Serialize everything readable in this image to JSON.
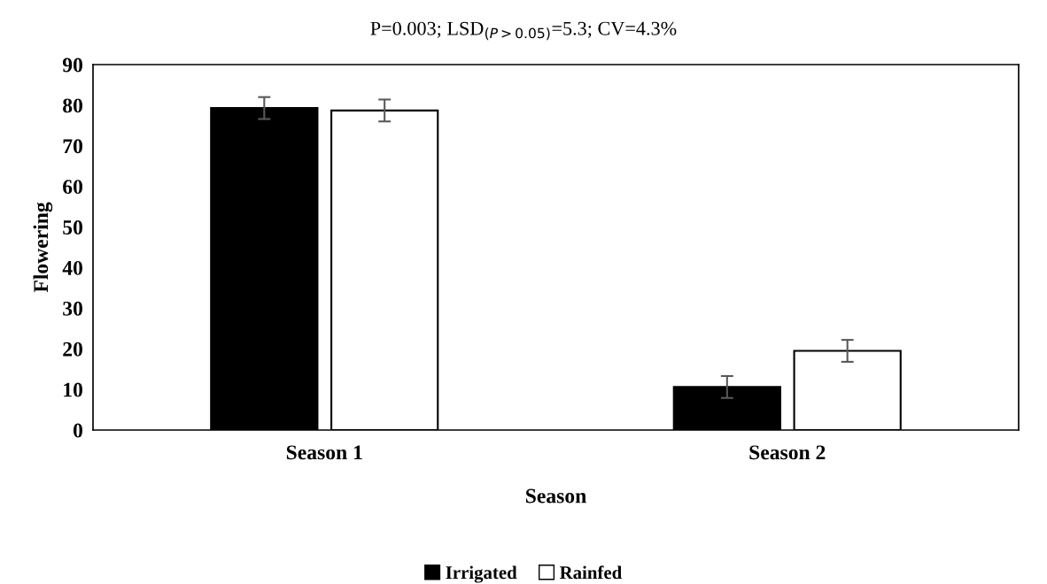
{
  "chart_data": {
    "type": "bar",
    "title": "P=0.003; LSD$_{(P>0.05)}$=5.3; CV=4.3%",
    "xlabel": "Season",
    "ylabel": "Flowering",
    "categories": [
      "Season 1",
      "Season 2"
    ],
    "series": [
      {
        "name": "Irrigated",
        "color": "#000000",
        "values": [
          79.3,
          10.6
        ],
        "errors": [
          2.7,
          2.7
        ]
      },
      {
        "name": "Rainfed",
        "color": "#ffffff",
        "values": [
          78.7,
          19.5
        ],
        "errors": [
          2.7,
          2.7
        ]
      }
    ],
    "ylim": [
      0,
      90
    ],
    "yticks": [
      0,
      10,
      20,
      30,
      40,
      50,
      60,
      70,
      80,
      90
    ],
    "grid": false,
    "legend": "bottom"
  }
}
